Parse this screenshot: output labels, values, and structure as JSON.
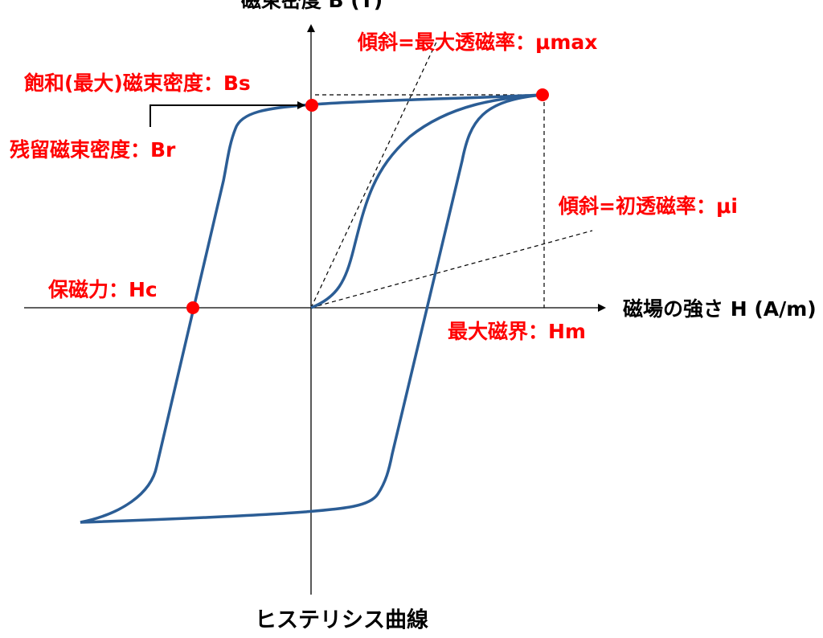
{
  "axes": {
    "y_label": "磁束密度 B (T)",
    "x_label": "磁場の強さ H (A/m)"
  },
  "labels": {
    "mu_max": "傾斜=最大透磁率：μmax",
    "bs": "飽和(最大)磁束密度：Bs",
    "br": "残留磁束密度：Br",
    "mu_i": "傾斜=初透磁率：μi",
    "hc": "保磁力：Hc",
    "hm": "最大磁界：Hm"
  },
  "caption": "ヒステリシス曲線"
}
